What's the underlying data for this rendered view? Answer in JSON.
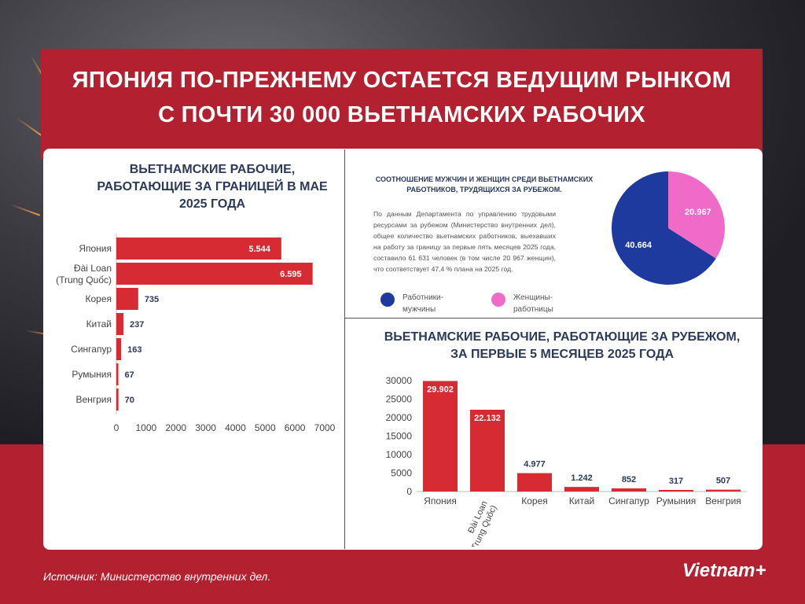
{
  "title_line1": "ЯПОНИЯ ПО-ПРЕЖНЕМУ ОСТАЕТСЯ ВЕДУЩИМ РЫНКОМ",
  "title_line2": "С ПОЧТИ 30 000 ВЬЕТНАМСКИХ РАБОЧИХ",
  "source": "Источник: Министерство внутренних дел.",
  "brand": "Vietnam+",
  "colors": {
    "primary_red": "#b3202f",
    "bar_red": "#d62b33",
    "male_blue": "#1e3a9e",
    "female_pink": "#f06bc8",
    "title_navy": "#2c3a5a"
  },
  "pie_description": "По данным Департамента по управлению трудовыми ресурсами за рубежом (Министерство внутренних дел), общее количество вьетнамских работников, выехавших на работу за границу за первые пять месяцев 2025 года, составило 61 631 человек (в том числе 20 967 женщин), что соответствует 47,4 % плана на 2025 год.",
  "chart_data": [
    {
      "type": "bar",
      "orientation": "horizontal",
      "title": "ВЬЕТНАМСКИЕ РАБОЧИЕ, РАБОТАЮЩИЕ ЗА ГРАНИЦЕЙ В МАЕ 2025 ГОДА",
      "categories": [
        "Япония",
        "Đài Loan (Trung Quốc)",
        "Корея",
        "Китай",
        "Сингапур",
        "Румыния",
        "Венгрия"
      ],
      "values": [
        5544,
        6595,
        735,
        237,
        163,
        67,
        70
      ],
      "value_labels": [
        "5.544",
        "6.595",
        "735",
        "237",
        "163",
        "67",
        "70"
      ],
      "xlim": [
        0,
        7000
      ],
      "xticks": [
        "0",
        "1000",
        "2000",
        "3000",
        "4000",
        "5000",
        "6000",
        "7000"
      ]
    },
    {
      "type": "pie",
      "title": "СООТНОШЕНИЕ МУЖЧИН И ЖЕНЩИН СРЕДИ ВЬЕТНАМСКИХ РАБОТНИКОВ, ТРУДЯЩИХСЯ ЗА РУБЕЖОМ.",
      "slices": [
        {
          "label": "Работники-мужчины",
          "value": 40664,
          "value_label": "40.664",
          "color": "#1e3a9e"
        },
        {
          "label": "Женщины-работницы",
          "value": 20967,
          "value_label": "20.967",
          "color": "#f06bc8"
        }
      ],
      "legend": "bottom"
    },
    {
      "type": "bar",
      "orientation": "vertical",
      "title": "ВЬЕТНАМСКИЕ РАБОЧИЕ, РАБОТАЮЩИЕ ЗА РУБЕЖОМ, ЗА ПЕРВЫЕ 5 МЕСЯЦЕВ 2025 ГОДА",
      "categories": [
        "Япония",
        "Đài Loan (Trung Quốc)",
        "Корея",
        "Китай",
        "Сингапур",
        "Румыния",
        "Венгрия"
      ],
      "values": [
        29902,
        22132,
        4977,
        1242,
        852,
        317,
        507
      ],
      "value_labels": [
        "29.902",
        "22.132",
        "4.977",
        "1.242",
        "852",
        "317",
        "507"
      ],
      "ylim": [
        0,
        30000
      ],
      "yticks": [
        "0",
        "5000",
        "10000",
        "15000",
        "20000",
        "25000",
        "30000"
      ]
    }
  ]
}
